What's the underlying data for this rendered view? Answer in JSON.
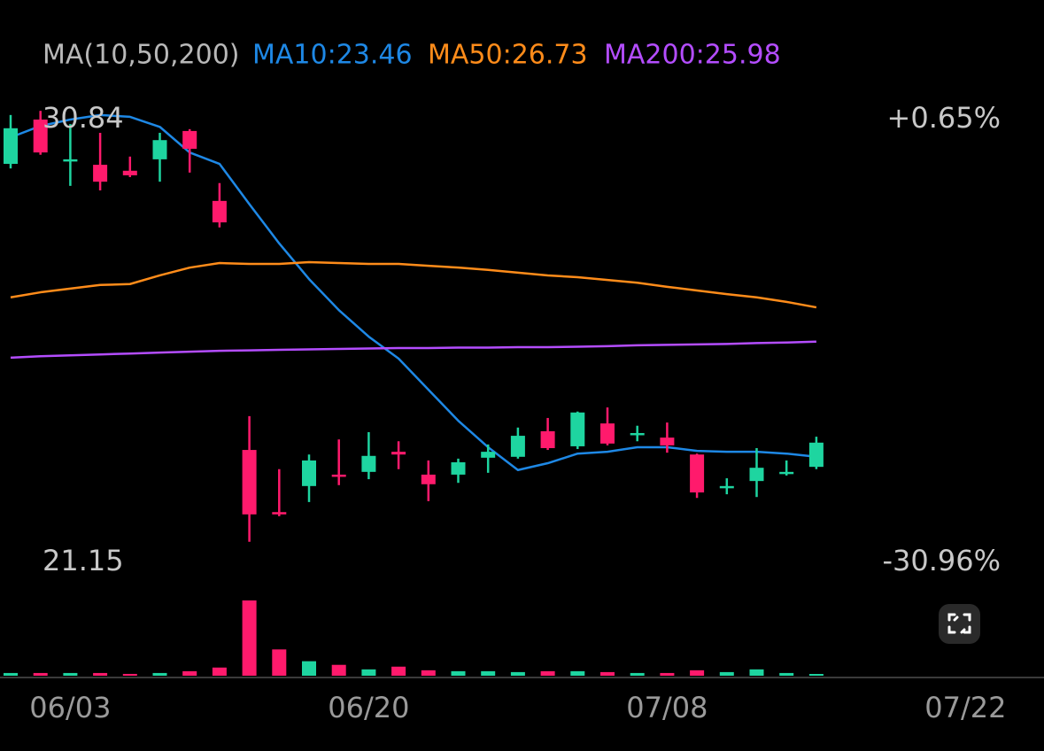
{
  "chart_data": {
    "type": "candlestick",
    "indicator_label": "MA(10,50,200)",
    "up_color": "#1ed5a0",
    "down_color": "#ff1a6c",
    "categories": [
      null,
      null,
      "06/03",
      null,
      null,
      null,
      null,
      null,
      null,
      null,
      null,
      null,
      "06/20",
      null,
      null,
      null,
      null,
      null,
      null,
      null,
      null,
      null,
      "07/08",
      null,
      null,
      null,
      null,
      null,
      null,
      null,
      null,
      null,
      "07/22"
    ],
    "open": [
      29.87,
      30.84,
      29.97,
      29.85,
      29.72,
      29.97,
      30.59,
      29.06,
      23.61,
      22.25,
      22.82,
      23.07,
      23.13,
      23.57,
      23.07,
      23.07,
      23.44,
      23.46,
      24.02,
      23.69,
      24.19,
      23.96,
      23.88,
      23.51,
      22.78,
      22.93,
      23.09,
      23.24,
      null,
      null,
      null,
      null,
      null
    ],
    "high": [
      30.94,
      31.03,
      30.74,
      30.55,
      30.03,
      30.55,
      30.63,
      29.45,
      24.35,
      23.19,
      23.51,
      23.84,
      24.0,
      23.8,
      23.38,
      23.42,
      23.73,
      24.1,
      24.31,
      24.45,
      24.54,
      24.14,
      24.21,
      23.53,
      22.99,
      23.65,
      23.38,
      23.9,
      null,
      null,
      null,
      null,
      null
    ],
    "low": [
      29.77,
      30.07,
      29.39,
      29.29,
      29.58,
      29.48,
      29.68,
      28.48,
      21.6,
      22.16,
      22.47,
      22.84,
      22.97,
      23.19,
      22.49,
      22.89,
      23.11,
      23.42,
      23.61,
      23.63,
      23.71,
      23.8,
      23.55,
      22.56,
      22.64,
      22.58,
      23.05,
      23.19,
      null,
      null,
      null,
      null,
      null
    ],
    "close": [
      30.65,
      30.12,
      29.97,
      29.48,
      29.62,
      30.39,
      30.2,
      28.59,
      22.2,
      22.2,
      23.38,
      23.03,
      23.48,
      23.51,
      22.86,
      23.34,
      23.57,
      23.92,
      23.65,
      24.43,
      23.75,
      23.98,
      23.71,
      22.68,
      22.82,
      23.22,
      23.13,
      23.77,
      null,
      null,
      null,
      null,
      null
    ],
    "volume": [
      3,
      3,
      3,
      3,
      2,
      3,
      5,
      9,
      83,
      29,
      16,
      12,
      7,
      10,
      6,
      5,
      5,
      4,
      5,
      5,
      4,
      3,
      3,
      6,
      4,
      7,
      3,
      1,
      null,
      null,
      null,
      null,
      null
    ],
    "series": [
      {
        "name": "MA10",
        "label": "MA10:23.46",
        "color": "#1e88e5",
        "values": [
          30.45,
          30.7,
          30.84,
          30.94,
          30.9,
          30.68,
          30.12,
          29.87,
          28.99,
          28.13,
          27.35,
          26.67,
          26.09,
          25.61,
          24.93,
          24.25,
          23.67,
          23.17,
          23.32,
          23.53,
          23.57,
          23.67,
          23.67,
          23.59,
          23.57,
          23.57,
          23.53,
          23.46,
          null,
          null,
          null,
          null,
          null
        ]
      },
      {
        "name": "MA50",
        "label": "MA50:26.73",
        "color": "#ff8c1a",
        "values": [
          26.95,
          27.06,
          27.14,
          27.22,
          27.24,
          27.43,
          27.6,
          27.7,
          27.68,
          27.68,
          27.72,
          27.7,
          27.68,
          27.68,
          27.64,
          27.6,
          27.55,
          27.49,
          27.43,
          27.39,
          27.33,
          27.27,
          27.18,
          27.1,
          27.02,
          26.95,
          26.85,
          26.73,
          null,
          null,
          null,
          null,
          null
        ]
      },
      {
        "name": "MA200",
        "label": "MA200:25.98",
        "color": "#b44dff",
        "values": [
          25.63,
          25.66,
          25.68,
          25.7,
          25.72,
          25.74,
          25.76,
          25.78,
          25.79,
          25.8,
          25.81,
          25.82,
          25.83,
          25.84,
          25.84,
          25.85,
          25.85,
          25.86,
          25.86,
          25.87,
          25.88,
          25.9,
          25.91,
          25.92,
          25.93,
          25.95,
          25.96,
          25.98,
          null,
          null,
          null,
          null,
          null
        ]
      }
    ],
    "ylim": [
      21.15,
      30.84
    ],
    "yticks": [
      30.84,
      21.15
    ],
    "y2lim": [
      -30.96,
      0.65
    ],
    "y2ticks": [
      {
        "value": 0.65,
        "label": "+0.65%"
      },
      {
        "value": -30.96,
        "label": "-30.96%"
      }
    ],
    "volume_lim": [
      0,
      83
    ]
  }
}
